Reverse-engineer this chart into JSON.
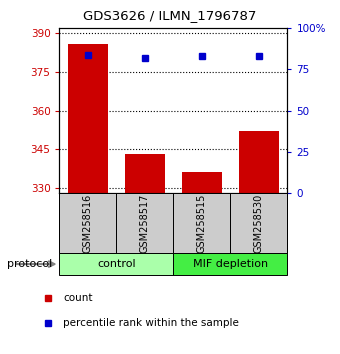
{
  "title": "GDS3626 / ILMN_1796787",
  "samples": [
    "GSM258516",
    "GSM258517",
    "GSM258515",
    "GSM258530"
  ],
  "counts": [
    386,
    343,
    336,
    352
  ],
  "percentiles": [
    84,
    82,
    83,
    83
  ],
  "ylim_left": [
    328,
    392
  ],
  "ylim_right": [
    0,
    100
  ],
  "yticks_left": [
    330,
    345,
    360,
    375,
    390
  ],
  "yticks_right": [
    0,
    25,
    50,
    75,
    100
  ],
  "ytick_labels_right": [
    "0",
    "25",
    "50",
    "75",
    "100%"
  ],
  "bar_color": "#cc0000",
  "dot_color": "#0000cc",
  "bar_width": 0.7,
  "groups": [
    {
      "label": "control",
      "samples": [
        0,
        1
      ],
      "color": "#aaffaa"
    },
    {
      "label": "MIF depletion",
      "samples": [
        2,
        3
      ],
      "color": "#44ee44"
    }
  ],
  "sample_bg_color": "#cccccc",
  "protocol_label": "protocol",
  "legend_items": [
    {
      "label": "count",
      "color": "#cc0000"
    },
    {
      "label": "percentile rank within the sample",
      "color": "#0000cc"
    }
  ]
}
